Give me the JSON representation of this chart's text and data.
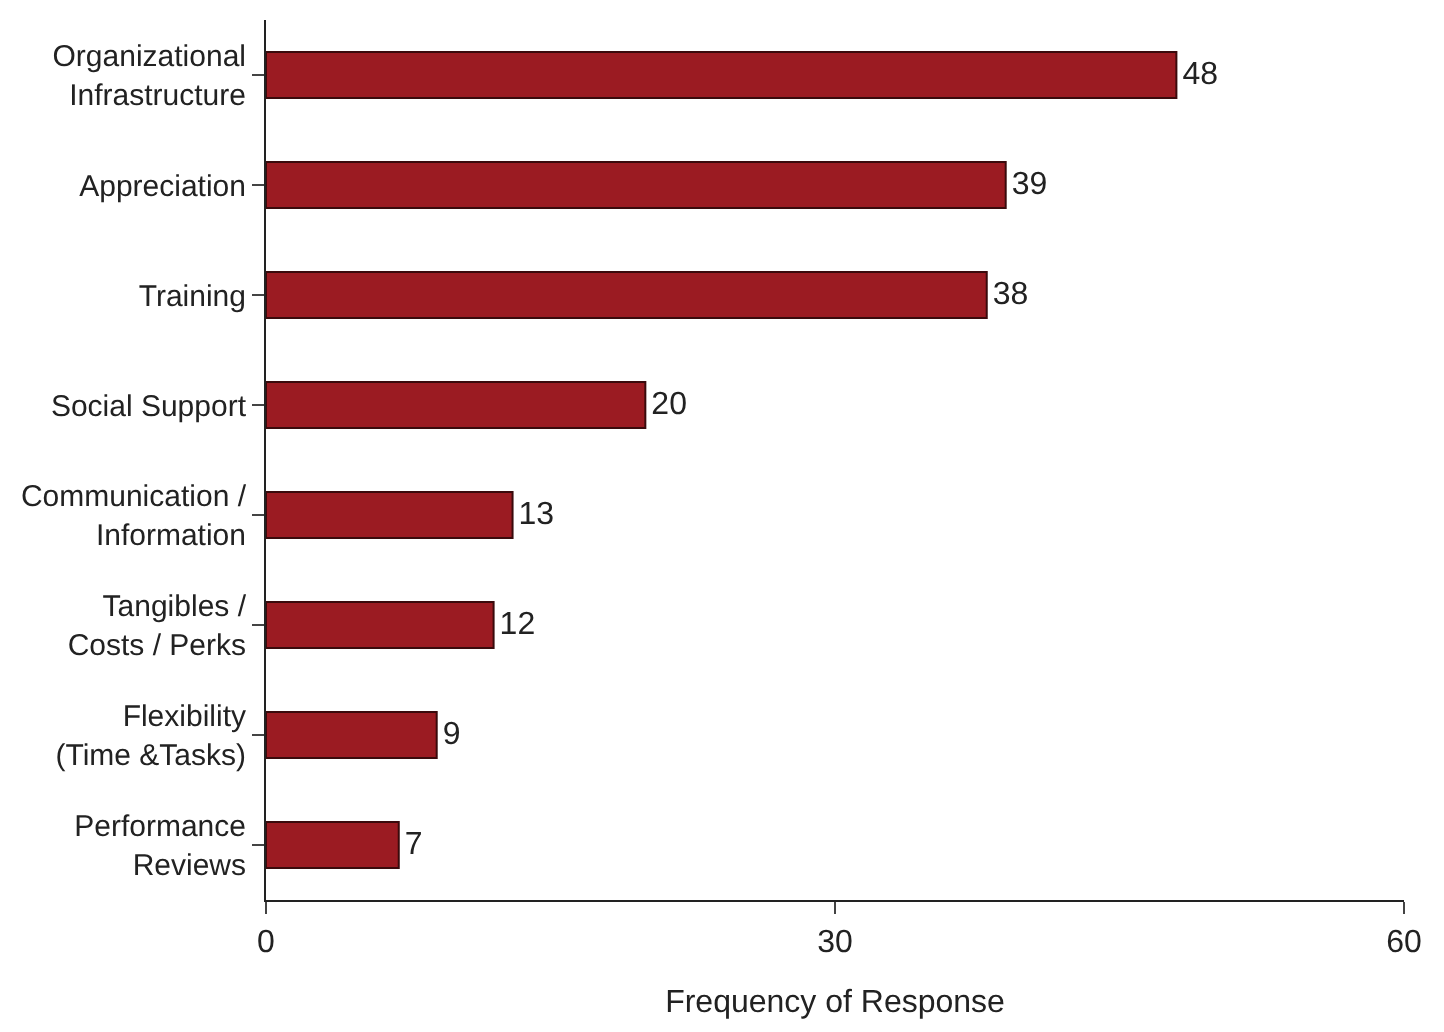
{
  "chart_data": {
    "type": "bar",
    "orientation": "horizontal",
    "xlabel": "Frequency of Response",
    "categories": [
      "Organizational Infrastructure",
      "Appreciation",
      "Training",
      "Social Support",
      "Communication / Information",
      "Tangibles / Costs / Perks",
      "Flexibility (Time &Tasks)",
      "Performance Reviews"
    ],
    "values": [
      48,
      39,
      38,
      20,
      13,
      12,
      9,
      7
    ],
    "color": "#9b1b22",
    "xlim": [
      0,
      60
    ],
    "xticks": [
      0,
      30,
      60
    ],
    "data_labels": true
  }
}
